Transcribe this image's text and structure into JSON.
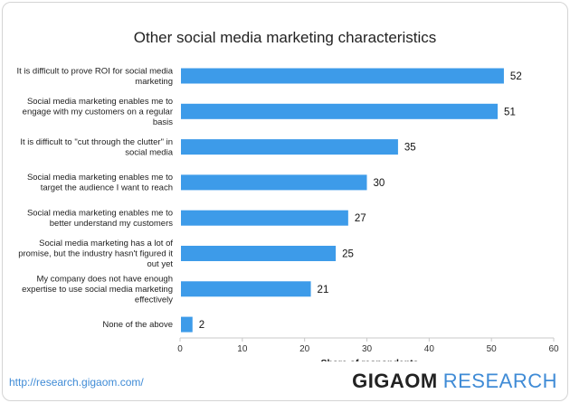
{
  "chart_data": {
    "type": "bar",
    "orientation": "horizontal",
    "title": "Other social media marketing characteristics",
    "xlabel": "Share of respondents",
    "ylabel": "",
    "xlim": [
      0,
      60
    ],
    "xticks": [
      0,
      10,
      20,
      30,
      40,
      50,
      60
    ],
    "grid": false,
    "categories": [
      [
        "It is difficult to prove ROI for social media",
        "marketing"
      ],
      [
        "Social media marketing enables me to",
        "engage with my customers on a regular",
        "basis"
      ],
      [
        "It is difficult to \"cut through the clutter\" in",
        "social media"
      ],
      [
        "Social media marketing enables me to",
        "target the audience I want to reach"
      ],
      [
        "Social media marketing enables me to",
        "better understand my customers"
      ],
      [
        "Social media marketing has a lot of",
        "promise, but the industry hasn't figured it",
        "out yet"
      ],
      [
        "My company does not have enough",
        "expertise to use social media marketing",
        "effectively"
      ],
      [
        "None of the above"
      ]
    ],
    "values": [
      52,
      51,
      35,
      30,
      27,
      25,
      21,
      2
    ],
    "bar_color": "#3d9be9"
  },
  "footer": {
    "url_text": "http://research.gigaom.com/",
    "brand_main": "GIGAOM",
    "brand_sub": "RESEARCH"
  }
}
